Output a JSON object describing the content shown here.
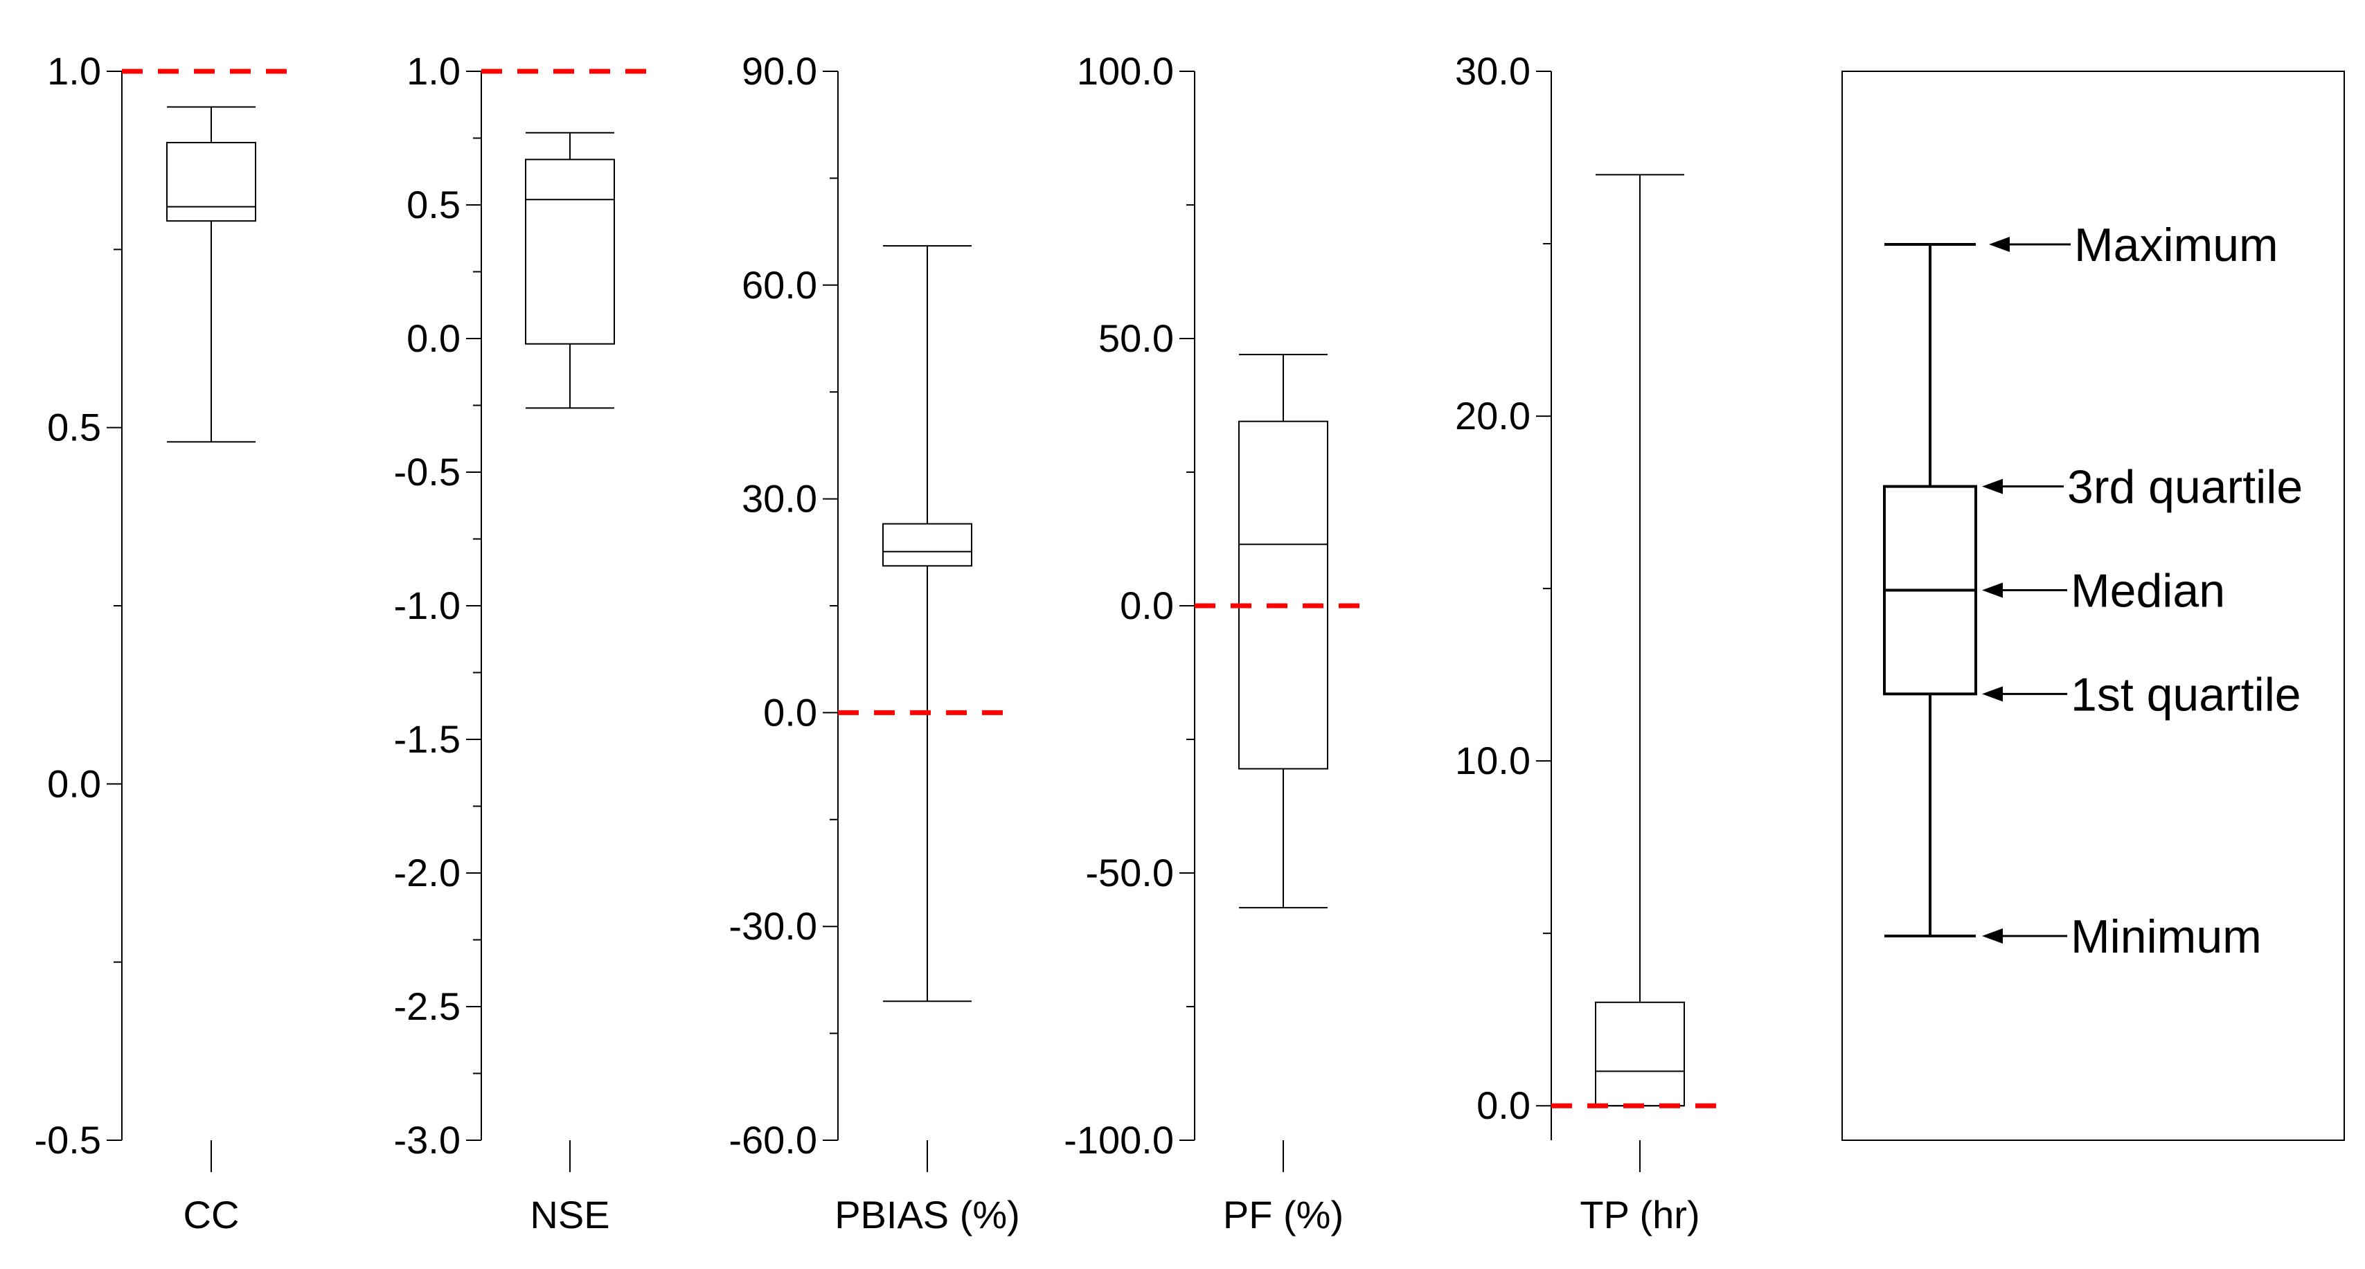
{
  "chart_data": [
    {
      "type": "box",
      "xlabel": "CC",
      "ylim": [
        -0.5,
        1.0
      ],
      "ticks": [
        "1.0",
        "0.5",
        "0.0",
        "-0.5"
      ],
      "reference_line": 1.0,
      "box": {
        "min": 0.48,
        "q1": 0.79,
        "median": 0.81,
        "q3": 0.9,
        "max": 0.95
      }
    },
    {
      "type": "box",
      "xlabel": "NSE",
      "ylim": [
        -3.0,
        1.0
      ],
      "ticks": [
        "1.0",
        "0.5",
        "0.0",
        "-0.5",
        "-1.0",
        "-1.5",
        "-2.0",
        "-2.5",
        "-3.0"
      ],
      "reference_line": 1.0,
      "box": {
        "min": -0.26,
        "q1": -0.02,
        "median": 0.52,
        "q3": 0.67,
        "max": 0.77
      }
    },
    {
      "type": "box",
      "xlabel": "PBIAS (%)",
      "ylim": [
        -60.0,
        90.0
      ],
      "ticks": [
        "90.0",
        "60.0",
        "30.0",
        "0.0",
        "-30.0",
        "-60.0"
      ],
      "reference_line": 0.0,
      "box": {
        "min": -40.5,
        "q1": 20.6,
        "median": 22.6,
        "q3": 26.5,
        "max": 65.5
      }
    },
    {
      "type": "box",
      "xlabel": "PF (%)",
      "ylim": [
        -100.0,
        100.0
      ],
      "ticks": [
        "100.0",
        "50.0",
        "0.0",
        "-50.0",
        "-100.0"
      ],
      "reference_line": 0.0,
      "box": {
        "min": -56.5,
        "q1": -30.5,
        "median": 11.5,
        "q3": 34.5,
        "max": 47.0
      }
    },
    {
      "type": "box",
      "xlabel": "TP (hr)",
      "ylim": [
        -1.0,
        30.0
      ],
      "ticks": [
        "30.0",
        "20.0",
        "10.0",
        "0.0"
      ],
      "reference_line": 0.0,
      "box": {
        "min": 0.0,
        "q1": 0.0,
        "median": 1.0,
        "q3": 3.0,
        "max": 27.0
      }
    }
  ],
  "legend": {
    "box": {
      "min": 5,
      "q1": 12,
      "median": 15,
      "q3": 18,
      "max": 25
    },
    "labels": {
      "max": "Maximum",
      "q3": "3rd quartile",
      "median": "Median",
      "q1": "1st quartile",
      "min": "Minimum"
    }
  },
  "colors": {
    "reference_line": "#ff0000",
    "axis": "#000000"
  }
}
